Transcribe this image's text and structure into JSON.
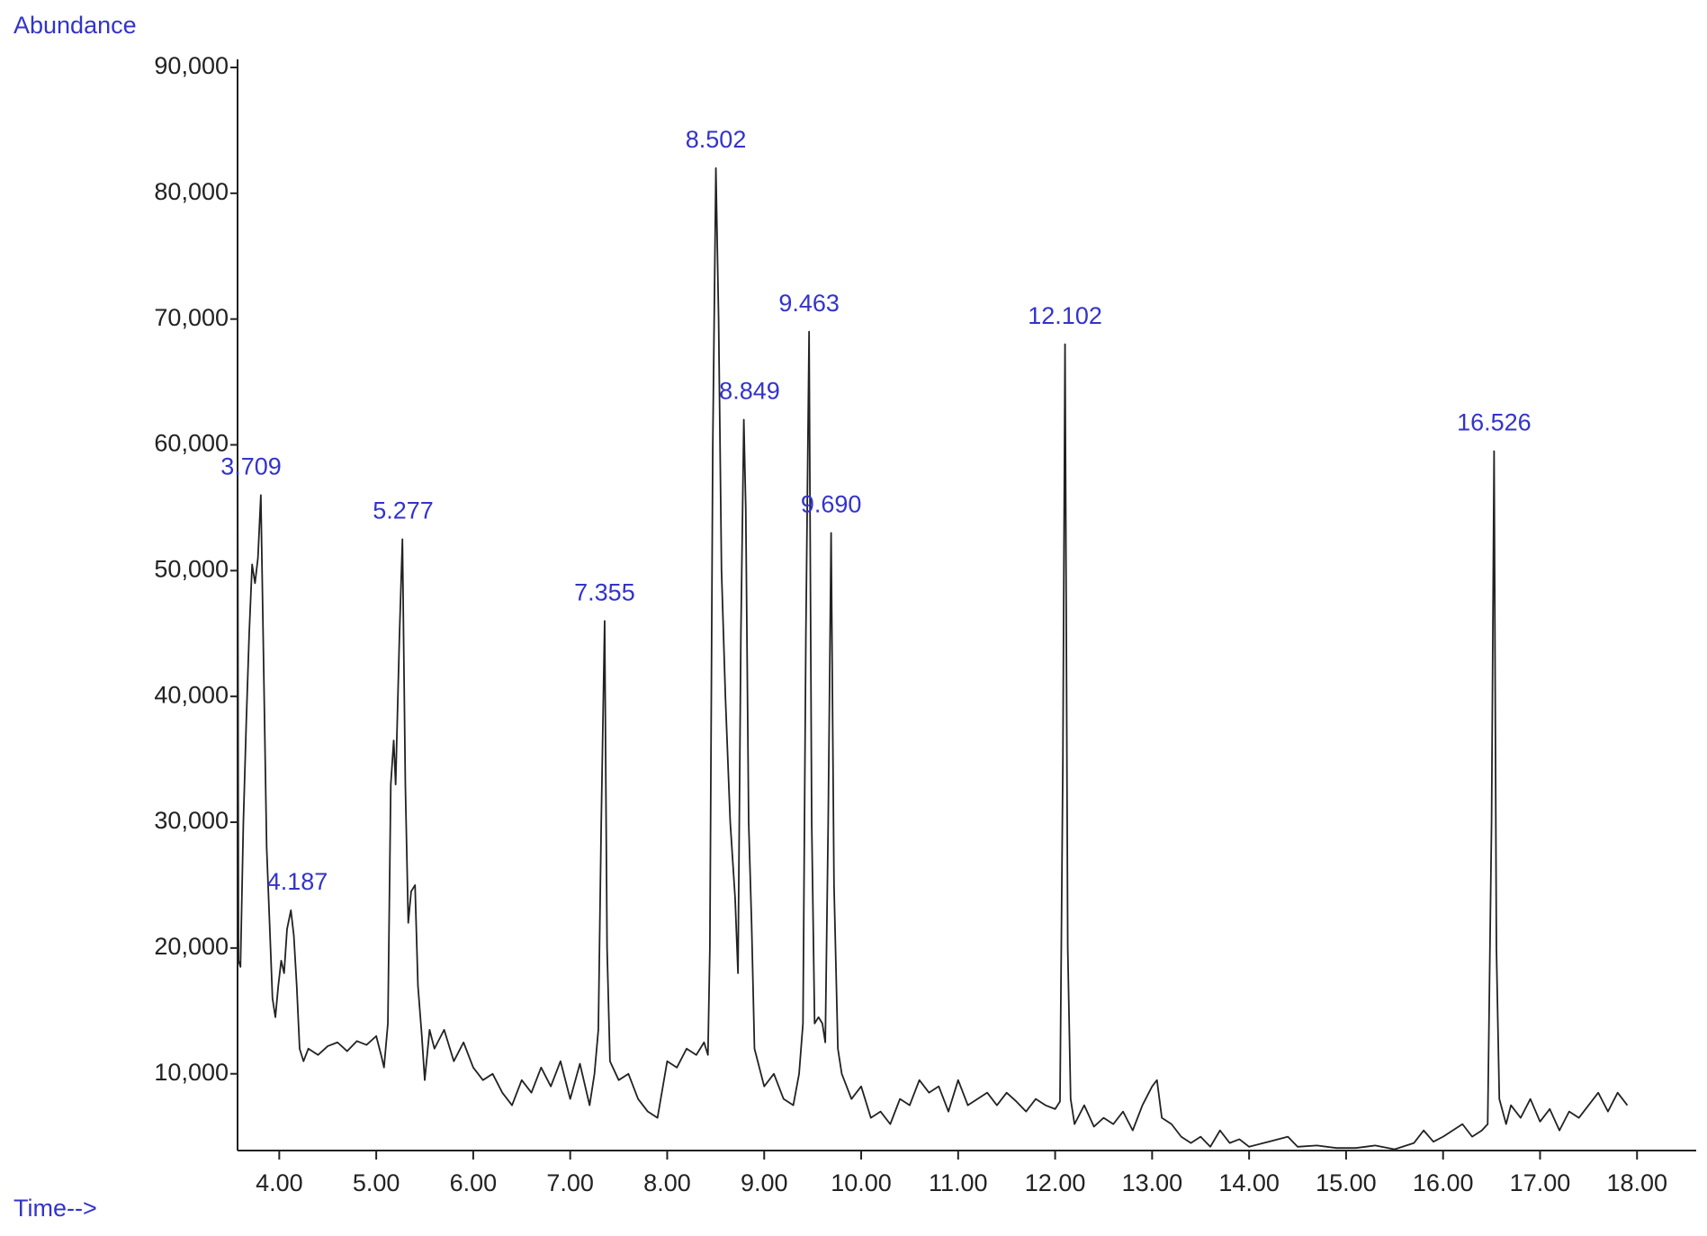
{
  "chart_data": {
    "type": "line",
    "y_label": "Abundance",
    "x_label": "Time-->",
    "color": "#222222",
    "annotation_color": "#3333cc",
    "xlim": [
      3.57,
      18.61
    ],
    "ylim": [
      3900,
      90000
    ],
    "xticks": [
      {
        "value": 4,
        "label": "4.00"
      },
      {
        "value": 5,
        "label": "5.00"
      },
      {
        "value": 6,
        "label": "6.00"
      },
      {
        "value": 7,
        "label": "7.00"
      },
      {
        "value": 8,
        "label": "8.00"
      },
      {
        "value": 9,
        "label": "9.00"
      },
      {
        "value": 10,
        "label": "10.00"
      },
      {
        "value": 11,
        "label": "11.00"
      },
      {
        "value": 12,
        "label": "12.00"
      },
      {
        "value": 13,
        "label": "13.00"
      },
      {
        "value": 14,
        "label": "14.00"
      },
      {
        "value": 15,
        "label": "15.00"
      },
      {
        "value": 16,
        "label": "16.00"
      },
      {
        "value": 17,
        "label": "17.00"
      },
      {
        "value": 18,
        "label": "18.00"
      }
    ],
    "yticks": [
      {
        "value": 10000,
        "label": "10,000"
      },
      {
        "value": 20000,
        "label": "20,000"
      },
      {
        "value": 30000,
        "label": "30,000"
      },
      {
        "value": 40000,
        "label": "40,000"
      },
      {
        "value": 50000,
        "label": "50,000"
      },
      {
        "value": 60000,
        "label": "60,000"
      },
      {
        "value": 70000,
        "label": "70,000"
      },
      {
        "value": 80000,
        "label": "80,000"
      },
      {
        "value": 90000,
        "label": "90,000"
      }
    ],
    "annotations": [
      {
        "value": 3.709,
        "label": "3.709"
      },
      {
        "value": 4.187,
        "label": "4.187"
      },
      {
        "value": 5.277,
        "label": "5.277"
      },
      {
        "value": 7.355,
        "label": "7.355"
      },
      {
        "value": 8.502,
        "label": "8.502"
      },
      {
        "value": 8.849,
        "label": "8.849"
      },
      {
        "value": 9.463,
        "label": "9.463"
      },
      {
        "value": 9.69,
        "label": "9.690"
      },
      {
        "value": 12.102,
        "label": "12.102"
      },
      {
        "value": 16.526,
        "label": "16.526"
      }
    ],
    "x": [
      3.57,
      3.58,
      3.6,
      3.63,
      3.66,
      3.69,
      3.72,
      3.75,
      3.78,
      3.81,
      3.84,
      3.87,
      3.9,
      3.93,
      3.96,
      3.99,
      4.02,
      4.05,
      4.08,
      4.12,
      4.15,
      4.18,
      4.21,
      4.25,
      4.3,
      4.4,
      4.5,
      4.6,
      4.7,
      4.8,
      4.9,
      5.0,
      5.05,
      5.08,
      5.12,
      5.15,
      5.18,
      5.2,
      5.24,
      5.27,
      5.3,
      5.33,
      5.36,
      5.4,
      5.43,
      5.47,
      5.5,
      5.55,
      5.6,
      5.7,
      5.8,
      5.9,
      6.0,
      6.1,
      6.2,
      6.3,
      6.4,
      6.5,
      6.6,
      6.7,
      6.8,
      6.9,
      7.0,
      7.1,
      7.2,
      7.25,
      7.29,
      7.32,
      7.355,
      7.38,
      7.41,
      7.5,
      7.6,
      7.7,
      7.8,
      7.9,
      8.0,
      8.1,
      8.2,
      8.3,
      8.38,
      8.42,
      8.44,
      8.47,
      8.502,
      8.53,
      8.56,
      8.6,
      8.65,
      8.7,
      8.73,
      8.76,
      8.79,
      8.81,
      8.84,
      8.87,
      8.9,
      8.95,
      9.0,
      9.1,
      9.2,
      9.3,
      9.36,
      9.4,
      9.43,
      9.463,
      9.49,
      9.52,
      9.56,
      9.6,
      9.63,
      9.66,
      9.69,
      9.72,
      9.76,
      9.8,
      9.9,
      10.0,
      10.1,
      10.2,
      10.3,
      10.4,
      10.5,
      10.6,
      10.7,
      10.8,
      10.9,
      11.0,
      11.1,
      11.2,
      11.3,
      11.4,
      11.5,
      11.6,
      11.7,
      11.8,
      11.9,
      12.0,
      12.05,
      12.08,
      12.102,
      12.13,
      12.16,
      12.2,
      12.3,
      12.4,
      12.5,
      12.6,
      12.7,
      12.8,
      12.9,
      13.0,
      13.05,
      13.1,
      13.2,
      13.3,
      13.4,
      13.5,
      13.6,
      13.7,
      13.8,
      13.9,
      14.0,
      14.2,
      14.4,
      14.5,
      14.7,
      14.9,
      15.1,
      15.3,
      15.5,
      15.7,
      15.8,
      15.9,
      16.0,
      16.1,
      16.2,
      16.3,
      16.4,
      16.46,
      16.5,
      16.526,
      16.55,
      16.58,
      16.65,
      16.7,
      16.8,
      16.9,
      17.0,
      17.1,
      17.2,
      17.3,
      17.4,
      17.5,
      17.6,
      17.7,
      17.8,
      17.9
    ],
    "values": [
      63000,
      19000,
      18500,
      30000,
      38000,
      45000,
      50500,
      49000,
      51000,
      56000,
      42000,
      28000,
      22000,
      16000,
      14500,
      17000,
      19000,
      18000,
      21500,
      23000,
      21000,
      17000,
      12000,
      11000,
      12000,
      11500,
      12200,
      12500,
      11800,
      12600,
      12300,
      13000,
      11500,
      10500,
      14000,
      33000,
      36500,
      33000,
      45000,
      52500,
      33000,
      22000,
      24500,
      25000,
      17000,
      13000,
      9500,
      13500,
      12000,
      13500,
      11000,
      12500,
      10500,
      9500,
      10000,
      8500,
      7500,
      9500,
      8500,
      10500,
      9000,
      11000,
      8000,
      10800,
      7500,
      10000,
      13500,
      30000,
      46000,
      20000,
      11000,
      9500,
      10000,
      8000,
      7000,
      6500,
      11000,
      10500,
      12000,
      11500,
      12500,
      11500,
      20000,
      60000,
      82000,
      70000,
      50000,
      40000,
      30000,
      24000,
      18000,
      45000,
      62000,
      55000,
      30000,
      22000,
      12000,
      10500,
      9000,
      10000,
      8000,
      7500,
      10000,
      14000,
      45000,
      69000,
      30000,
      14000,
      14500,
      14000,
      12500,
      30000,
      53000,
      25000,
      12000,
      10000,
      8000,
      9000,
      6500,
      7000,
      6000,
      8000,
      7500,
      9500,
      8500,
      9000,
      7000,
      9500,
      7500,
      8000,
      8500,
      7500,
      8500,
      7800,
      7000,
      8000,
      7500,
      7200,
      7800,
      35000,
      68000,
      20000,
      8000,
      6000,
      7500,
      5800,
      6500,
      6000,
      7000,
      5500,
      7500,
      9000,
      9500,
      6500,
      6000,
      5000,
      4500,
      5000,
      4200,
      5500,
      4500,
      4800,
      4200,
      4600,
      5000,
      4200,
      4300,
      4100,
      4100,
      4300,
      4000,
      4500,
      5500,
      4600,
      5000,
      5500,
      6000,
      5000,
      5500,
      6000,
      30000,
      59500,
      20000,
      8000,
      6000,
      7500,
      6500,
      8000,
      6200,
      7200,
      5500,
      7000,
      6500,
      7500,
      8500,
      7000,
      8500,
      7500
    ]
  }
}
